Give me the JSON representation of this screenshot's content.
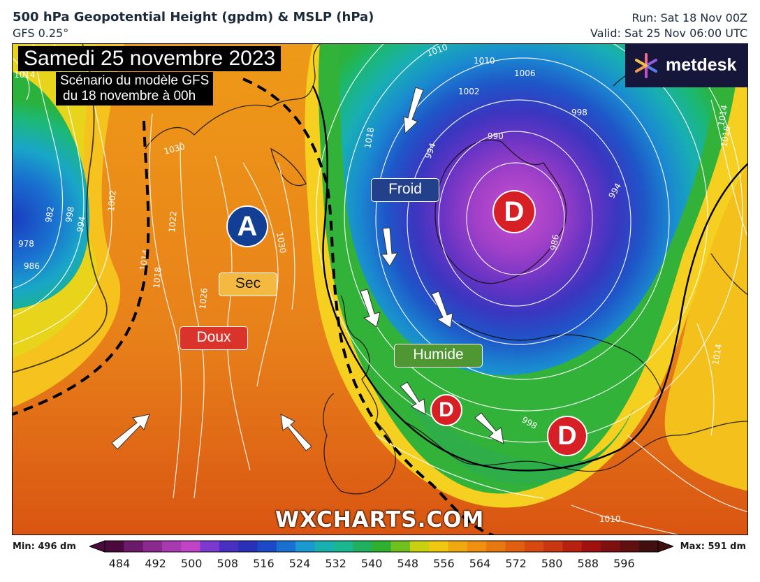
{
  "header": {
    "title": "500 hPa Geopotential Height (gpdm) & MSLP (hPa)",
    "model": "GFS 0.25°",
    "run": "Run: Sat 18 Nov 00Z",
    "valid": "Valid: Sat 25 Nov 06:00 UTC"
  },
  "overlay": {
    "date_title": "Samedi 25 novembre 2023",
    "scenario_line1": "Scénario du modèle GFS",
    "scenario_line2": "du 18 novembre à 00h"
  },
  "logo": {
    "text": "metdesk",
    "icon": "metdesk-star-icon"
  },
  "labels": {
    "froid": "Froid",
    "sec": "Sec",
    "doux": "Doux",
    "humide": "Humide"
  },
  "pressure_centers": [
    {
      "letter": "A",
      "type": "high",
      "color": "#123f94"
    },
    {
      "letter": "D",
      "type": "low",
      "color": "#d71f26"
    },
    {
      "letter": "D",
      "type": "low",
      "color": "#d71f26"
    },
    {
      "letter": "D",
      "type": "low",
      "color": "#d71f26"
    }
  ],
  "isobar_labels": [
    "1014",
    "1010",
    "1006",
    "1002",
    "998",
    "994",
    "990",
    "986",
    "982",
    "978",
    "1018",
    "1022",
    "1026",
    "1030",
    "994",
    "986",
    "998",
    "1014",
    "1010",
    "1002",
    "1014",
    "1018",
    "994",
    "998",
    "1018",
    "1030",
    "1014"
  ],
  "watermark": "WXCHARTS.COM",
  "colorbar": {
    "min_label": "Min: 496 dm",
    "max_label": "Max: 591 dm",
    "ticks": [
      "484",
      "492",
      "500",
      "508",
      "516",
      "524",
      "532",
      "540",
      "548",
      "556",
      "564",
      "572",
      "580",
      "588",
      "596"
    ],
    "colors": [
      "#4a0a3e",
      "#6b1a6a",
      "#8a2a8e",
      "#a83ab0",
      "#c044c6",
      "#7a3ad0",
      "#4a30c0",
      "#2a30b8",
      "#1a4ac8",
      "#1a70d0",
      "#1a9ad0",
      "#1ab0b0",
      "#1ab890",
      "#20b060",
      "#30b030",
      "#70c020",
      "#c8d010",
      "#f0c810",
      "#f0a810",
      "#f09010",
      "#e87810",
      "#e06010",
      "#d84810",
      "#c83810",
      "#b82010",
      "#a01010",
      "#801010",
      "#601010",
      "#401010"
    ]
  }
}
